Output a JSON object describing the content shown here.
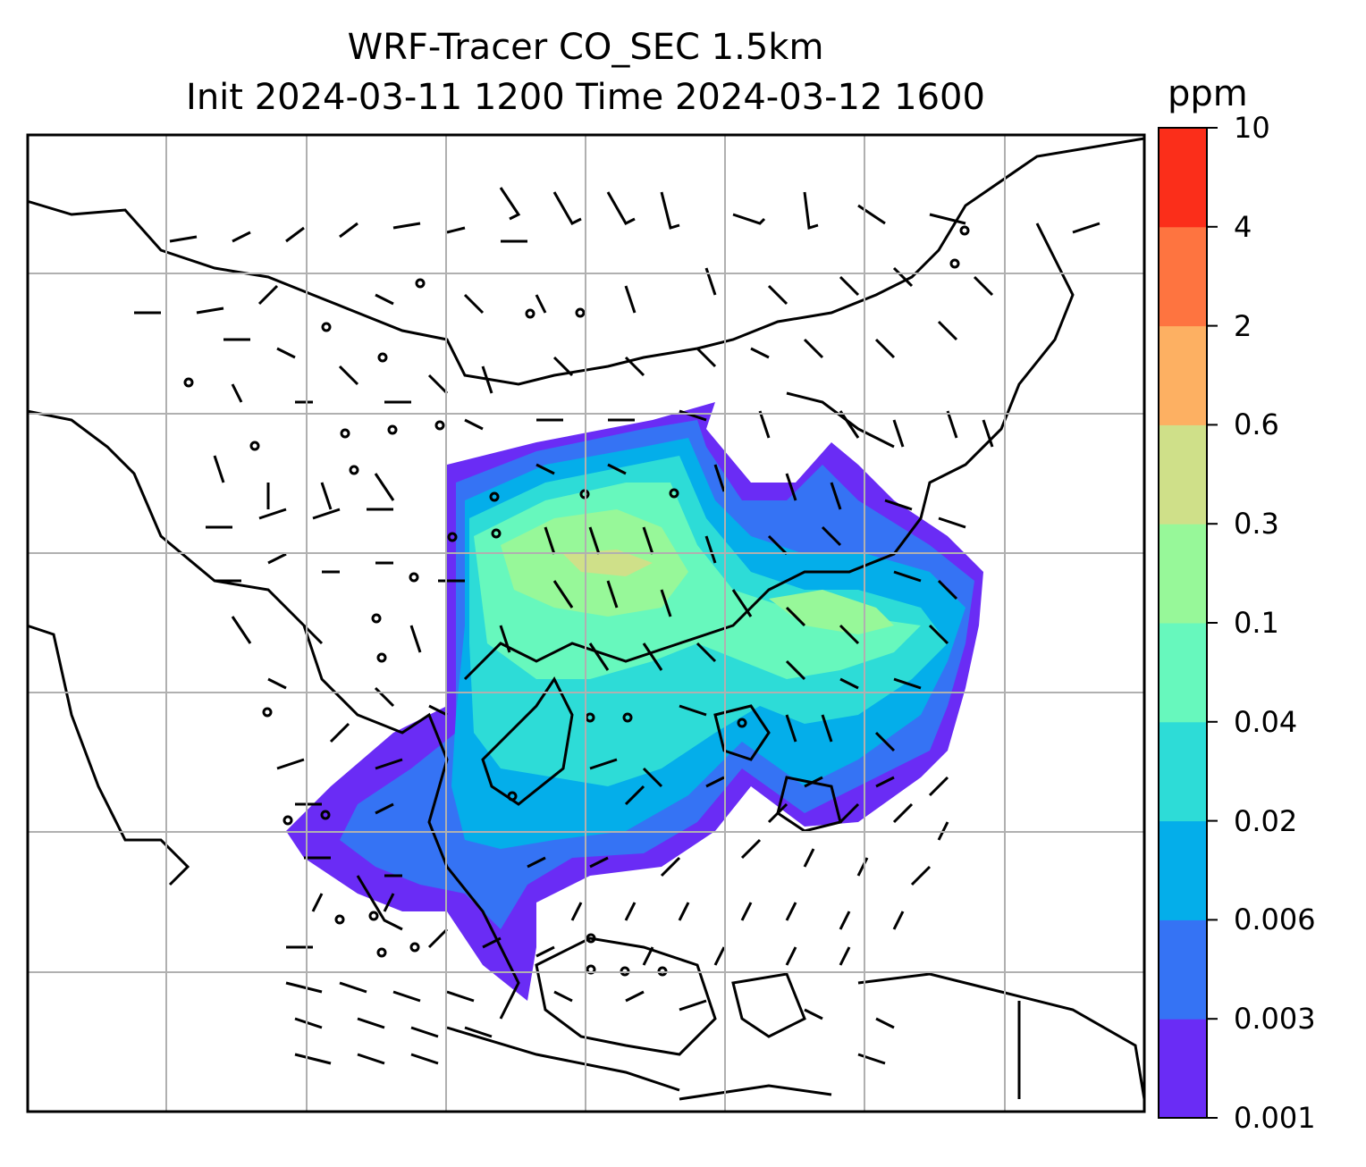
{
  "title": {
    "line1": "WRF-Tracer CO_SEC 1.5km",
    "line2": "Init 2024-03-11 1200 Time 2024-03-12 1600"
  },
  "colorbar": {
    "unit": "ppm",
    "levels": [
      "0.001",
      "0.003",
      "0.006",
      "0.02",
      "0.04",
      "0.1",
      "0.3",
      "0.6",
      "2",
      "4",
      "10"
    ],
    "colors": [
      "#6a2cf5",
      "#3573f4",
      "#04aeea",
      "#2ddcd7",
      "#67f8bd",
      "#97f899",
      "#cfe089",
      "#fdb062",
      "#fe7440",
      "#fb2e1a"
    ]
  },
  "map": {
    "gridlines": true,
    "features": [
      "coastlines",
      "national-borders",
      "wind-barbs",
      "tracer-concentration-field"
    ]
  }
}
